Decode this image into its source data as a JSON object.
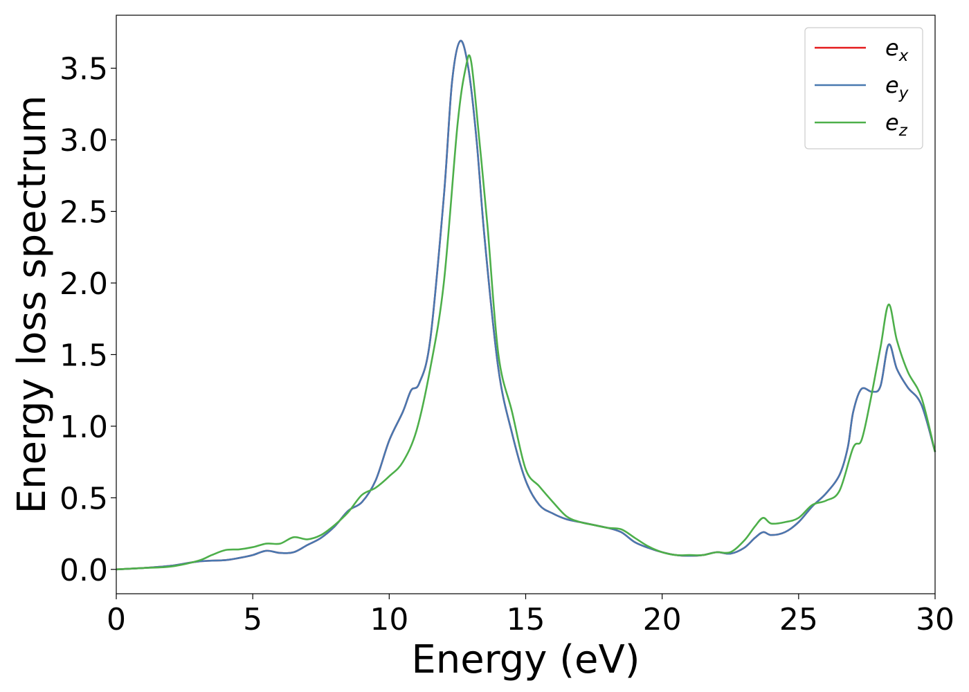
{
  "chart_data": {
    "type": "line",
    "title": "",
    "xlabel": "Energy (eV)",
    "ylabel": "Energy loss spectrum",
    "xlim": [
      0,
      30
    ],
    "ylim": [
      -0.17,
      3.87
    ],
    "xticks": [
      0,
      5,
      10,
      15,
      20,
      25,
      30
    ],
    "xtick_labels": [
      "0",
      "5",
      "10",
      "15",
      "20",
      "25",
      "30"
    ],
    "yticks": [
      0.0,
      0.5,
      1.0,
      1.5,
      2.0,
      2.5,
      3.0,
      3.5
    ],
    "ytick_labels": [
      "0.0",
      "0.5",
      "1.0",
      "1.5",
      "2.0",
      "2.5",
      "3.0",
      "3.5"
    ],
    "grid": false,
    "legend_position": "top-right",
    "series": [
      {
        "name": "e",
        "subscript": "x",
        "color": "#e41a1c",
        "x": [
          0,
          1,
          2,
          3,
          4,
          4.5,
          5,
          5.5,
          6,
          6.5,
          7,
          7.5,
          8,
          8.5,
          9,
          9.5,
          10,
          10.5,
          10.8,
          11.1,
          11.5,
          12,
          12.3,
          12.6,
          12.9,
          13.2,
          13.5,
          14,
          14.5,
          15,
          15.5,
          16,
          16.5,
          17,
          17.5,
          18,
          18.5,
          19,
          19.5,
          20,
          20.5,
          21,
          21.5,
          22,
          22.5,
          23,
          23.4,
          23.7,
          24,
          24.5,
          25,
          25.5,
          26,
          26.5,
          26.8,
          27,
          27.3,
          27.7,
          28,
          28.3,
          28.6,
          29,
          29.5,
          30
        ],
        "y": [
          0,
          0.01,
          0.025,
          0.055,
          0.065,
          0.08,
          0.1,
          0.13,
          0.115,
          0.12,
          0.17,
          0.22,
          0.3,
          0.41,
          0.47,
          0.62,
          0.9,
          1.1,
          1.25,
          1.3,
          1.6,
          2.6,
          3.4,
          3.69,
          3.5,
          3.0,
          2.3,
          1.4,
          0.95,
          0.62,
          0.45,
          0.39,
          0.35,
          0.33,
          0.31,
          0.29,
          0.26,
          0.19,
          0.15,
          0.12,
          0.1,
          0.095,
          0.1,
          0.12,
          0.11,
          0.15,
          0.22,
          0.26,
          0.24,
          0.26,
          0.33,
          0.44,
          0.53,
          0.66,
          0.85,
          1.1,
          1.26,
          1.24,
          1.28,
          1.57,
          1.4,
          1.27,
          1.15,
          0.82
        ]
      },
      {
        "name": "e",
        "subscript": "y",
        "color": "#4878b0",
        "x": [
          0,
          1,
          2,
          3,
          4,
          4.5,
          5,
          5.5,
          6,
          6.5,
          7,
          7.5,
          8,
          8.5,
          9,
          9.5,
          10,
          10.5,
          10.8,
          11.1,
          11.5,
          12,
          12.3,
          12.6,
          12.9,
          13.2,
          13.5,
          14,
          14.5,
          15,
          15.5,
          16,
          16.5,
          17,
          17.5,
          18,
          18.5,
          19,
          19.5,
          20,
          20.5,
          21,
          21.5,
          22,
          22.5,
          23,
          23.4,
          23.7,
          24,
          24.5,
          25,
          25.5,
          26,
          26.5,
          26.8,
          27,
          27.3,
          27.7,
          28,
          28.3,
          28.6,
          29,
          29.5,
          30
        ],
        "y": [
          0,
          0.01,
          0.025,
          0.055,
          0.065,
          0.08,
          0.1,
          0.13,
          0.115,
          0.12,
          0.17,
          0.22,
          0.3,
          0.41,
          0.47,
          0.62,
          0.9,
          1.1,
          1.25,
          1.3,
          1.6,
          2.6,
          3.4,
          3.69,
          3.5,
          3.0,
          2.3,
          1.4,
          0.95,
          0.62,
          0.45,
          0.39,
          0.35,
          0.33,
          0.31,
          0.29,
          0.26,
          0.19,
          0.15,
          0.12,
          0.1,
          0.095,
          0.1,
          0.12,
          0.11,
          0.15,
          0.22,
          0.26,
          0.24,
          0.26,
          0.33,
          0.44,
          0.53,
          0.66,
          0.85,
          1.1,
          1.26,
          1.24,
          1.28,
          1.57,
          1.4,
          1.27,
          1.15,
          0.82
        ]
      },
      {
        "name": "e",
        "subscript": "z",
        "color": "#4daf4a",
        "x": [
          0,
          1,
          2,
          3,
          3.5,
          4,
          4.5,
          5,
          5.5,
          6,
          6.5,
          7,
          7.5,
          8,
          8.5,
          9,
          9.5,
          10,
          10.5,
          11,
          11.5,
          12,
          12.5,
          12.8,
          13,
          13.3,
          13.6,
          14,
          14.5,
          15,
          15.5,
          16,
          16.5,
          17,
          17.5,
          18,
          18.5,
          19,
          19.5,
          20,
          20.5,
          21,
          21.5,
          22,
          22.5,
          23,
          23.4,
          23.7,
          24,
          24.5,
          25,
          25.5,
          26,
          26.5,
          27,
          27.3,
          27.6,
          28,
          28.3,
          28.6,
          29,
          29.5,
          30
        ],
        "y": [
          0,
          0.01,
          0.02,
          0.06,
          0.1,
          0.135,
          0.14,
          0.155,
          0.18,
          0.18,
          0.225,
          0.21,
          0.24,
          0.31,
          0.4,
          0.52,
          0.57,
          0.65,
          0.75,
          0.97,
          1.4,
          2.0,
          3.1,
          3.5,
          3.55,
          3.0,
          2.4,
          1.5,
          1.1,
          0.7,
          0.58,
          0.47,
          0.37,
          0.33,
          0.31,
          0.29,
          0.28,
          0.22,
          0.16,
          0.12,
          0.1,
          0.1,
          0.1,
          0.12,
          0.12,
          0.2,
          0.3,
          0.36,
          0.32,
          0.33,
          0.36,
          0.45,
          0.48,
          0.55,
          0.85,
          0.9,
          1.15,
          1.55,
          1.85,
          1.6,
          1.38,
          1.2,
          0.82
        ]
      }
    ]
  }
}
